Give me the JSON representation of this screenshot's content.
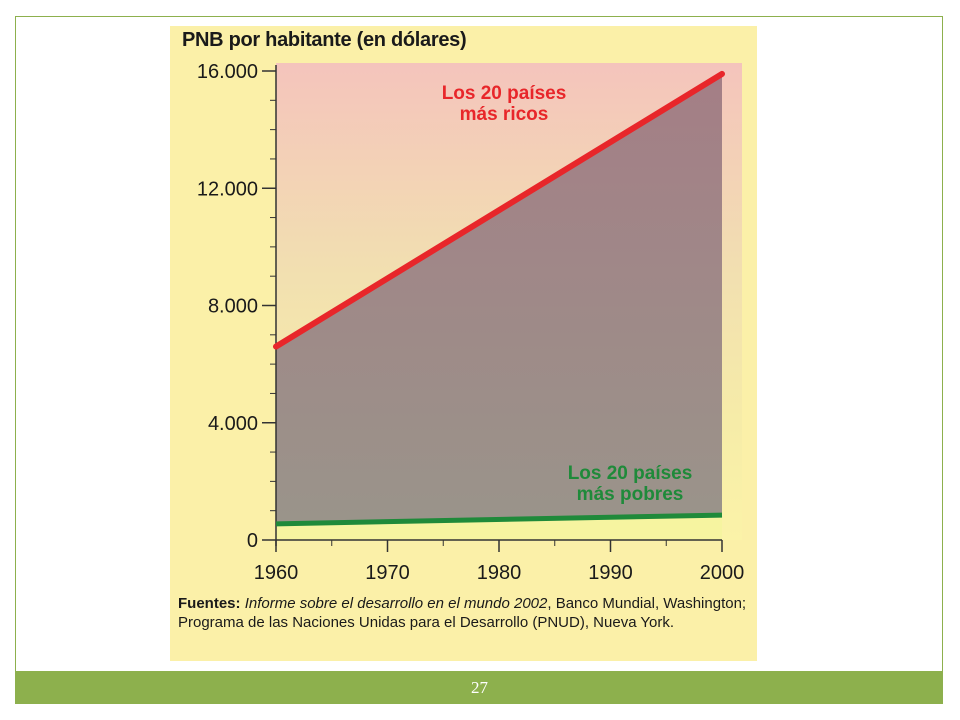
{
  "slide": {
    "page_number": "27",
    "frame_color": "#8db04d"
  },
  "chart_data": {
    "type": "line",
    "title": "PNB por habitante (en dólares)",
    "xlabel": "",
    "ylabel": "",
    "x_ticks": [
      "1960",
      "1970",
      "1980",
      "1990",
      "2000"
    ],
    "y_ticks": [
      "0",
      "4.000",
      "8.000",
      "12.000",
      "16.000"
    ],
    "xlim": [
      1960,
      2000
    ],
    "ylim": [
      0,
      16000
    ],
    "grid": false,
    "series": [
      {
        "name": "Los 20 países más ricos",
        "label_lines": [
          "Los 20 países",
          "más ricos"
        ],
        "color": "#e8262a",
        "x": [
          1960,
          2000
        ],
        "values": [
          6600,
          15900
        ]
      },
      {
        "name": "Los 20 países más pobres",
        "label_lines": [
          "Los 20 países",
          "más pobres"
        ],
        "color": "#1f8a3a",
        "x": [
          1960,
          2000
        ],
        "values": [
          550,
          850
        ]
      }
    ],
    "annotations": {
      "fill_between_series_color": "#9c8a88",
      "source_label": "Fuentes:",
      "source_title": "Informe sobre el desarrollo en el mundo 2002",
      "source_rest_1": ", Banco Mundial, Washington; Programa de las Naciones Unidas para el Desarrollo (PNUD),",
      "source_rest_2": "Nueva York."
    }
  }
}
